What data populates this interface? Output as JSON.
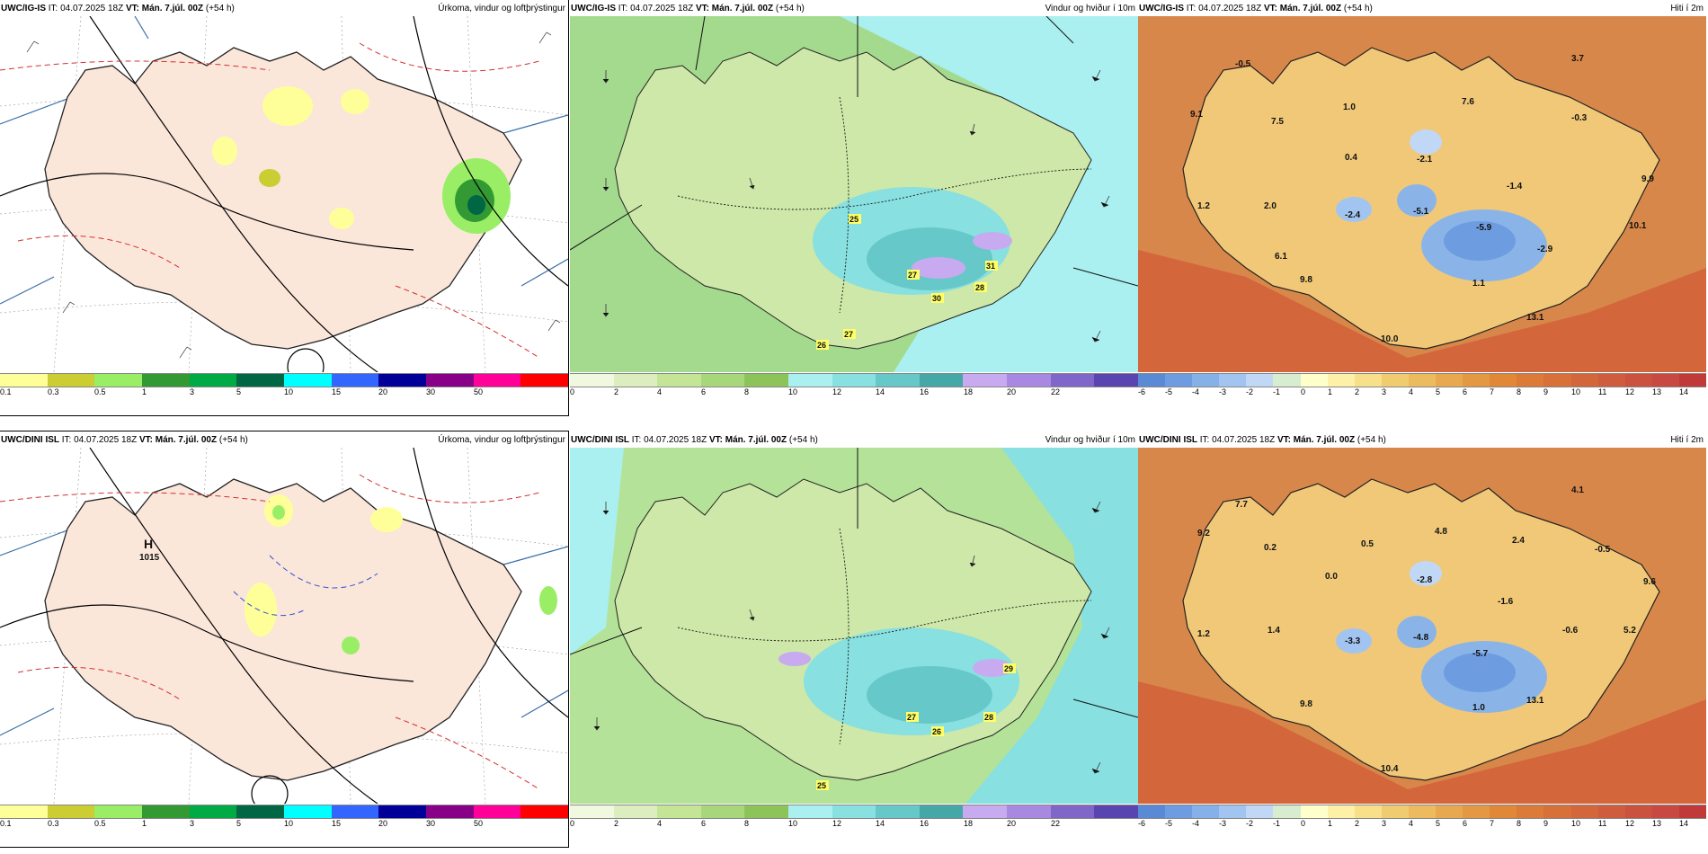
{
  "panels": {
    "p1": {
      "model": "UWC/IG-IS",
      "it_label": "IT:",
      "it_value": "04.07.2025 18Z",
      "vt_label": "VT:",
      "vt_value": "Mán. 7.júl. 00Z",
      "lead": "(+54 h)",
      "title": "Úrkoma, vindur og loftþrýstingur",
      "scale_ticks": [
        "0.1",
        "0.3",
        "0.5",
        "1",
        "3",
        "5",
        "10",
        "15",
        "20",
        "30",
        "50"
      ],
      "scale_colors": [
        "#ffff99",
        "#cccc33",
        "#99ee66",
        "#339933",
        "#00aa44",
        "#006644",
        "#00ffff",
        "#3366ff",
        "#000099",
        "#880088",
        "#ff0099",
        "#ff0000"
      ],
      "map_labels": []
    },
    "p2": {
      "model": "UWC/IG-IS",
      "it_label": "IT:",
      "it_value": "04.07.2025 18Z",
      "vt_label": "VT:",
      "vt_value": "Mán. 7.júl. 00Z",
      "lead": "(+54 h)",
      "title": "Vindur og hviður í 10m",
      "scale_ticks": [
        "0",
        "2",
        "4",
        "6",
        "8",
        "10",
        "12",
        "14",
        "16",
        "18",
        "20",
        "22"
      ],
      "scale_colors": [
        "#f0f8e0",
        "#dceec0",
        "#c4e496",
        "#a8d67a",
        "#8cc45a",
        "#aaf0f0",
        "#88e0e0",
        "#66c8c8",
        "#44a8a8",
        "#c8aaf0",
        "#a888e0",
        "#8066c8",
        "#5a44b0"
      ],
      "gust_labels": [
        "25",
        "27",
        "31",
        "30",
        "28",
        "26",
        "27"
      ]
    },
    "p3": {
      "model": "UWC/IG-IS",
      "it_label": "IT:",
      "it_value": "04.07.2025 18Z",
      "vt_label": "VT:",
      "vt_value": "Mán. 7.júl. 00Z",
      "lead": "(+54 h)",
      "title": "Hiti í 2m",
      "scale_ticks": [
        "-6",
        "-5",
        "-4",
        "-3",
        "-2",
        "-1",
        "0",
        "1",
        "2",
        "3",
        "4",
        "5",
        "6",
        "7",
        "8",
        "9",
        "10",
        "11",
        "12",
        "13",
        "14"
      ],
      "scale_colors": [
        "#5a8ad6",
        "#6e9ce0",
        "#86b0e8",
        "#a2c4f0",
        "#c0d8f6",
        "#d8ecd0",
        "#ffffcc",
        "#fff0a8",
        "#f8e08a",
        "#f0cc70",
        "#ecbb60",
        "#e8a850",
        "#e49842",
        "#e08838",
        "#dc7a38",
        "#d8703a",
        "#d4663c",
        "#d05c3e",
        "#cc5240",
        "#c84842",
        "#c03a3a"
      ],
      "temp_labels": [
        "3.7",
        "-0.5",
        "9.1",
        "7.5",
        "1.0",
        "7.6",
        "-0.3",
        "0.4",
        "-2.1",
        "9.9",
        "-1.4",
        "1.2",
        "2.0",
        "-2.4",
        "-5.1",
        "10.1",
        "-5.9",
        "-2.9",
        "6.1",
        "9.8",
        "1.1",
        "13.1",
        "10.0"
      ]
    },
    "p4": {
      "model": "UWC/DINI ISL",
      "it_label": "IT:",
      "it_value": "04.07.2025 18Z",
      "vt_label": "VT:",
      "vt_value": "Mán. 7.júl. 00Z",
      "lead": "(+54 h)",
      "title": "Úrkoma, vindur og loftþrýstingur",
      "scale_ticks": [
        "0.1",
        "0.3",
        "0.5",
        "1",
        "3",
        "5",
        "10",
        "15",
        "20",
        "30",
        "50"
      ],
      "scale_colors": [
        "#ffff99",
        "#cccc33",
        "#99ee66",
        "#339933",
        "#00aa44",
        "#006644",
        "#00ffff",
        "#3366ff",
        "#000099",
        "#880088",
        "#ff0099",
        "#ff0000"
      ],
      "high_label": "H",
      "high_value": "1015"
    },
    "p5": {
      "model": "UWC/DINI ISL",
      "it_label": "IT:",
      "it_value": "04.07.2025 18Z",
      "vt_label": "VT:",
      "vt_value": "Mán. 7.júl. 00Z",
      "lead": "(+54 h)",
      "title": "Vindur og hviður í 10m",
      "scale_ticks": [
        "0",
        "2",
        "4",
        "6",
        "8",
        "10",
        "12",
        "14",
        "16",
        "18",
        "20",
        "22"
      ],
      "scale_colors": [
        "#f0f8e0",
        "#dceec0",
        "#c4e496",
        "#a8d67a",
        "#8cc45a",
        "#aaf0f0",
        "#88e0e0",
        "#66c8c8",
        "#44a8a8",
        "#c8aaf0",
        "#a888e0",
        "#8066c8",
        "#5a44b0"
      ],
      "gust_labels": [
        "29",
        "27",
        "26",
        "28",
        "25"
      ]
    },
    "p6": {
      "model": "UWC/DINI ISL",
      "it_label": "IT:",
      "it_value": "04.07.2025 18Z",
      "vt_label": "VT:",
      "vt_value": "Mán. 7.júl. 00Z",
      "lead": "(+54 h)",
      "title": "Hiti í 2m",
      "scale_ticks": [
        "-6",
        "-5",
        "-4",
        "-3",
        "-2",
        "-1",
        "0",
        "1",
        "2",
        "3",
        "4",
        "5",
        "6",
        "7",
        "8",
        "9",
        "10",
        "11",
        "12",
        "13",
        "14"
      ],
      "scale_colors": [
        "#5a8ad6",
        "#6e9ce0",
        "#86b0e8",
        "#a2c4f0",
        "#c0d8f6",
        "#d8ecd0",
        "#ffffcc",
        "#fff0a8",
        "#f8e08a",
        "#f0cc70",
        "#ecbb60",
        "#e8a850",
        "#e49842",
        "#e08838",
        "#dc7a38",
        "#d8703a",
        "#d4663c",
        "#d05c3e",
        "#cc5240",
        "#c84842",
        "#c03a3a"
      ],
      "temp_labels": [
        "4.1",
        "7.7",
        "9.2",
        "0.2",
        "0.5",
        "4.8",
        "2.4",
        "-0.5",
        "0.0",
        "-2.8",
        "9.6",
        "-1.6",
        "1.2",
        "1.4",
        "-3.3",
        "-4.8",
        "-0.6",
        "5.2",
        "-5.7",
        "9.8",
        "1.0",
        "13.1",
        "10.4"
      ]
    }
  },
  "colors": {
    "land_precip": "#fbe6da",
    "sea_white": "#ffffff",
    "wind_sea": "#a4da8e",
    "wind_land": "#cde8a8",
    "temp_sea": "#d8874a",
    "temp_land": "#f0c878",
    "temp_cold": "#8ab4e8"
  }
}
